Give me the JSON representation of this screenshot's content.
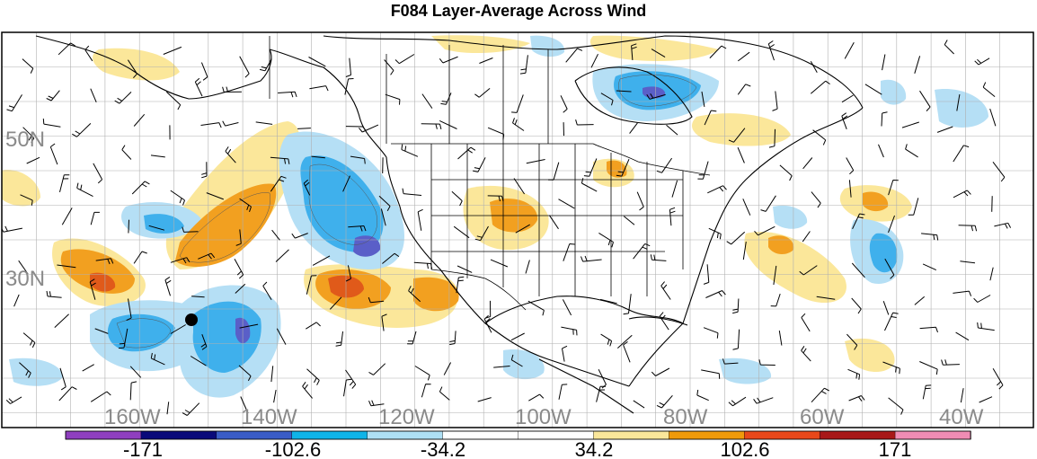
{
  "title": "F084 Layer-Average Across Wind",
  "map": {
    "lat_labels": [
      "50N",
      "30N"
    ],
    "lon_labels": [
      "160W",
      "140W",
      "120W",
      "100W",
      "80W",
      "60W",
      "40W"
    ]
  },
  "colorbar": {
    "colors": [
      "#8f3fbf",
      "#0a0a7a",
      "#3a5cc6",
      "#0fb4e8",
      "#aee0f5",
      "#ffffff",
      "#ffffff",
      "#fbe79a",
      "#f09a0a",
      "#e8481a",
      "#a81818",
      "#f08cb4"
    ],
    "labels": [
      "-171",
      "-102.6",
      "-34.2",
      "34.2",
      "102.6",
      "171"
    ]
  },
  "colors": {
    "light_blue": "#b5dff5",
    "blue": "#3fb0ec",
    "dark_blue": "#5a5fc8",
    "light_yellow": "#fbe79a",
    "orange": "#f2a020",
    "red_orange": "#e05a1a"
  }
}
